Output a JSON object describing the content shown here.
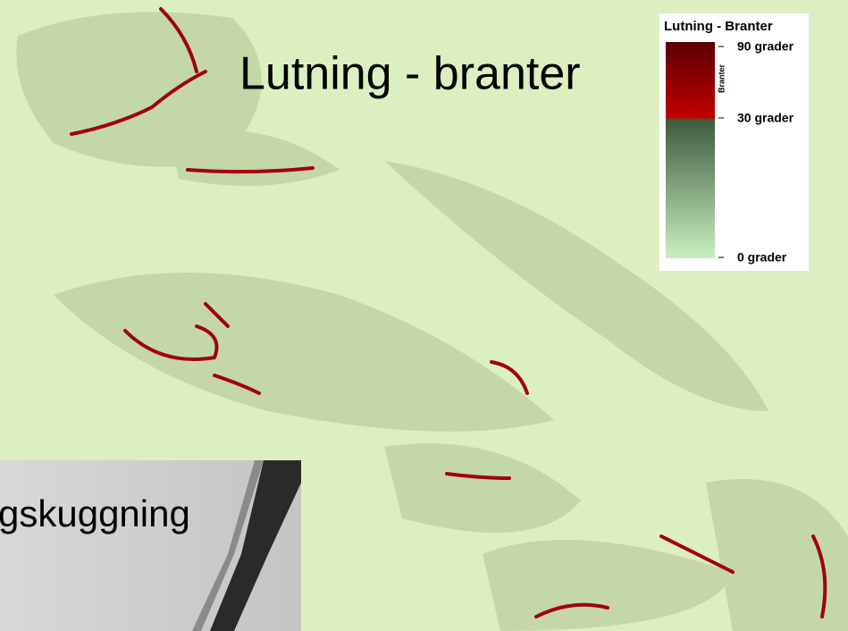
{
  "title": "Lutning - branter",
  "legend": {
    "title": "Lutning - Branter",
    "axis_label": "Branter",
    "labels": [
      "90 grader",
      "30 grader",
      "0 grader"
    ]
  },
  "inset": {
    "label": "gskuggning"
  }
}
